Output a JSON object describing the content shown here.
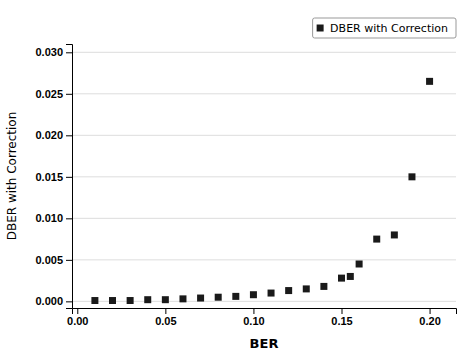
{
  "chart_data": {
    "type": "scatter",
    "x": [
      0.01,
      0.02,
      0.03,
      0.04,
      0.05,
      0.06,
      0.07,
      0.08,
      0.09,
      0.1,
      0.11,
      0.12,
      0.13,
      0.14,
      0.15,
      0.155,
      0.16,
      0.17,
      0.18,
      0.19,
      0.2
    ],
    "series": [
      {
        "name": "DBER with Correction",
        "color": "#1a1a1a",
        "marker": "square",
        "values": [
          0.0001,
          0.0001,
          0.0001,
          0.0002,
          0.0002,
          0.0003,
          0.0004,
          0.0005,
          0.0006,
          0.0008,
          0.001,
          0.0013,
          0.0015,
          0.0018,
          0.0028,
          0.003,
          0.0045,
          0.0075,
          0.008,
          0.015,
          0.0265
        ]
      }
    ],
    "xlabel": "BER",
    "ylabel": "DBER with Correction",
    "xlim": [
      -0.003,
      0.215
    ],
    "ylim": [
      -0.0008,
      0.031
    ],
    "xticks": [
      {
        "value": 0.0,
        "label": "0.00"
      },
      0.05,
      {
        "value": 0.1,
        "label": "0.10"
      },
      0.15,
      {
        "value": 0.2,
        "label": "0.20"
      }
    ],
    "yticks": [
      {
        "value": 0.0,
        "label": "0.000"
      },
      0.005,
      {
        "value": 0.01,
        "label": "0.010"
      },
      0.015,
      {
        "value": 0.02,
        "label": "0.020"
      },
      0.025,
      {
        "value": 0.03,
        "label": "0.030"
      }
    ],
    "grid": "y",
    "legend": "top-right"
  }
}
